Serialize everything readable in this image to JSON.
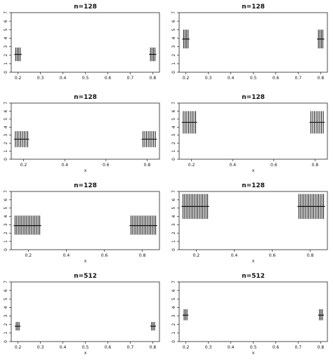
{
  "chart_data": [
    {
      "type": "errorbar",
      "title": "n=128",
      "xlabel": "",
      "ylabel": "",
      "xlim": [
        0.17,
        0.83
      ],
      "ylim": [
        0,
        7
      ],
      "xticks": [
        "0.2",
        "0.3",
        "0.4",
        "0.5",
        "0.6",
        "0.7",
        "0.8"
      ],
      "xtick_values": [
        0.2,
        0.3,
        0.4,
        0.5,
        0.6,
        0.7,
        0.8
      ],
      "yticks": [
        "0",
        "1",
        "2",
        "3",
        "4",
        "5",
        "6",
        "7"
      ],
      "clusters": [
        {
          "x_from": 0.19,
          "x_to": 0.21,
          "count": 4,
          "center": 2.1,
          "low": 1.3,
          "high": 2.9
        },
        {
          "x_from": 0.79,
          "x_to": 0.81,
          "count": 4,
          "center": 2.1,
          "low": 1.3,
          "high": 2.9
        }
      ]
    },
    {
      "type": "errorbar",
      "title": "n=128",
      "xlabel": "",
      "ylabel": "",
      "xlim": [
        0.17,
        0.83
      ],
      "ylim": [
        0,
        7
      ],
      "xticks": [
        "0.2",
        "0.3",
        "0.4",
        "0.5",
        "0.6",
        "0.7",
        "0.8"
      ],
      "xtick_values": [
        0.2,
        0.3,
        0.4,
        0.5,
        0.6,
        0.7,
        0.8
      ],
      "yticks": [
        "0",
        "1",
        "2",
        "3",
        "4",
        "5",
        "6",
        "7"
      ],
      "clusters": [
        {
          "x_from": 0.19,
          "x_to": 0.21,
          "count": 4,
          "center": 3.9,
          "low": 2.8,
          "high": 5.0
        },
        {
          "x_from": 0.79,
          "x_to": 0.81,
          "count": 4,
          "center": 3.9,
          "low": 2.8,
          "high": 5.0
        }
      ]
    },
    {
      "type": "errorbar",
      "title": "n=128",
      "xlabel": "x",
      "ylabel": "",
      "xlim": [
        0.14,
        0.86
      ],
      "ylim": [
        0,
        7
      ],
      "xticks": [
        "0.2",
        "0.4",
        "0.6",
        "0.8"
      ],
      "xtick_values": [
        0.2,
        0.4,
        0.6,
        0.8
      ],
      "yticks": [
        "0",
        "1",
        "2",
        "3",
        "4",
        "5",
        "6",
        "7"
      ],
      "clusters": [
        {
          "x_from": 0.16,
          "x_to": 0.22,
          "count": 8,
          "center": 2.5,
          "low": 1.5,
          "high": 3.5
        },
        {
          "x_from": 0.78,
          "x_to": 0.84,
          "count": 8,
          "center": 2.5,
          "low": 1.5,
          "high": 3.5
        }
      ]
    },
    {
      "type": "errorbar",
      "title": "n=128",
      "xlabel": "x",
      "ylabel": "",
      "xlim": [
        0.14,
        0.86
      ],
      "ylim": [
        0,
        7
      ],
      "xticks": [
        "0.2",
        "0.4",
        "0.6",
        "0.8"
      ],
      "xtick_values": [
        0.2,
        0.4,
        0.6,
        0.8
      ],
      "yticks": [
        "0",
        "1",
        "2",
        "3",
        "4",
        "5",
        "6",
        "7"
      ],
      "clusters": [
        {
          "x_from": 0.16,
          "x_to": 0.22,
          "count": 8,
          "center": 4.6,
          "low": 3.2,
          "high": 6.0
        },
        {
          "x_from": 0.78,
          "x_to": 0.84,
          "count": 8,
          "center": 4.6,
          "low": 3.2,
          "high": 6.0
        }
      ]
    },
    {
      "type": "errorbar",
      "title": "n=128",
      "xlabel": "x",
      "ylabel": "",
      "xlim": [
        0.11,
        0.89
      ],
      "ylim": [
        0,
        7
      ],
      "xticks": [
        "0.2",
        "0.4",
        "0.6",
        "0.8"
      ],
      "xtick_values": [
        0.2,
        0.4,
        0.6,
        0.8
      ],
      "yticks": [
        "0",
        "1",
        "2",
        "3",
        "4",
        "5",
        "6",
        "7"
      ],
      "clusters": [
        {
          "x_from": 0.13,
          "x_to": 0.26,
          "count": 16,
          "center": 2.9,
          "low": 1.8,
          "high": 4.1
        },
        {
          "x_from": 0.74,
          "x_to": 0.87,
          "count": 16,
          "center": 2.9,
          "low": 1.8,
          "high": 4.1
        }
      ]
    },
    {
      "type": "errorbar",
      "title": "n=128",
      "xlabel": "x",
      "ylabel": "",
      "xlim": [
        0.11,
        0.89
      ],
      "ylim": [
        0,
        7
      ],
      "xticks": [
        "0.2",
        "0.4",
        "0.6",
        "0.8"
      ],
      "xtick_values": [
        0.2,
        0.4,
        0.6,
        0.8
      ],
      "yticks": [
        "0",
        "1",
        "2",
        "3",
        "4",
        "5",
        "6",
        "7"
      ],
      "clusters": [
        {
          "x_from": 0.13,
          "x_to": 0.26,
          "count": 16,
          "center": 5.2,
          "low": 3.7,
          "high": 6.7
        },
        {
          "x_from": 0.74,
          "x_to": 0.87,
          "count": 16,
          "center": 5.2,
          "low": 3.7,
          "high": 6.7
        }
      ]
    },
    {
      "type": "errorbar",
      "title": "n=512",
      "xlabel": "x",
      "ylabel": "",
      "xlim": [
        0.17,
        0.83
      ],
      "ylim": [
        0,
        7
      ],
      "xticks": [
        "0.2",
        "0.3",
        "0.4",
        "0.5",
        "0.6",
        "0.7",
        "0.8"
      ],
      "xtick_values": [
        0.2,
        0.3,
        0.4,
        0.5,
        0.6,
        0.7,
        0.8
      ],
      "yticks": [
        "0",
        "1",
        "2",
        "3",
        "4",
        "5",
        "6",
        "7"
      ],
      "clusters": [
        {
          "x_from": 0.192,
          "x_to": 0.205,
          "count": 3,
          "center": 1.8,
          "low": 1.3,
          "high": 2.3
        },
        {
          "x_from": 0.795,
          "x_to": 0.808,
          "count": 3,
          "center": 1.8,
          "low": 1.3,
          "high": 2.3
        }
      ]
    },
    {
      "type": "errorbar",
      "title": "n=512",
      "xlabel": "x",
      "ylabel": "",
      "xlim": [
        0.17,
        0.83
      ],
      "ylim": [
        0,
        7
      ],
      "xticks": [
        "0.2",
        "0.3",
        "0.4",
        "0.5",
        "0.6",
        "0.7",
        "0.8"
      ],
      "xtick_values": [
        0.2,
        0.3,
        0.4,
        0.5,
        0.6,
        0.7,
        0.8
      ],
      "yticks": [
        "0",
        "1",
        "2",
        "3",
        "4",
        "5",
        "6",
        "7"
      ],
      "clusters": [
        {
          "x_from": 0.192,
          "x_to": 0.205,
          "count": 3,
          "center": 3.1,
          "low": 2.5,
          "high": 3.8
        },
        {
          "x_from": 0.795,
          "x_to": 0.808,
          "count": 3,
          "center": 3.1,
          "low": 2.5,
          "high": 3.8
        }
      ]
    }
  ]
}
